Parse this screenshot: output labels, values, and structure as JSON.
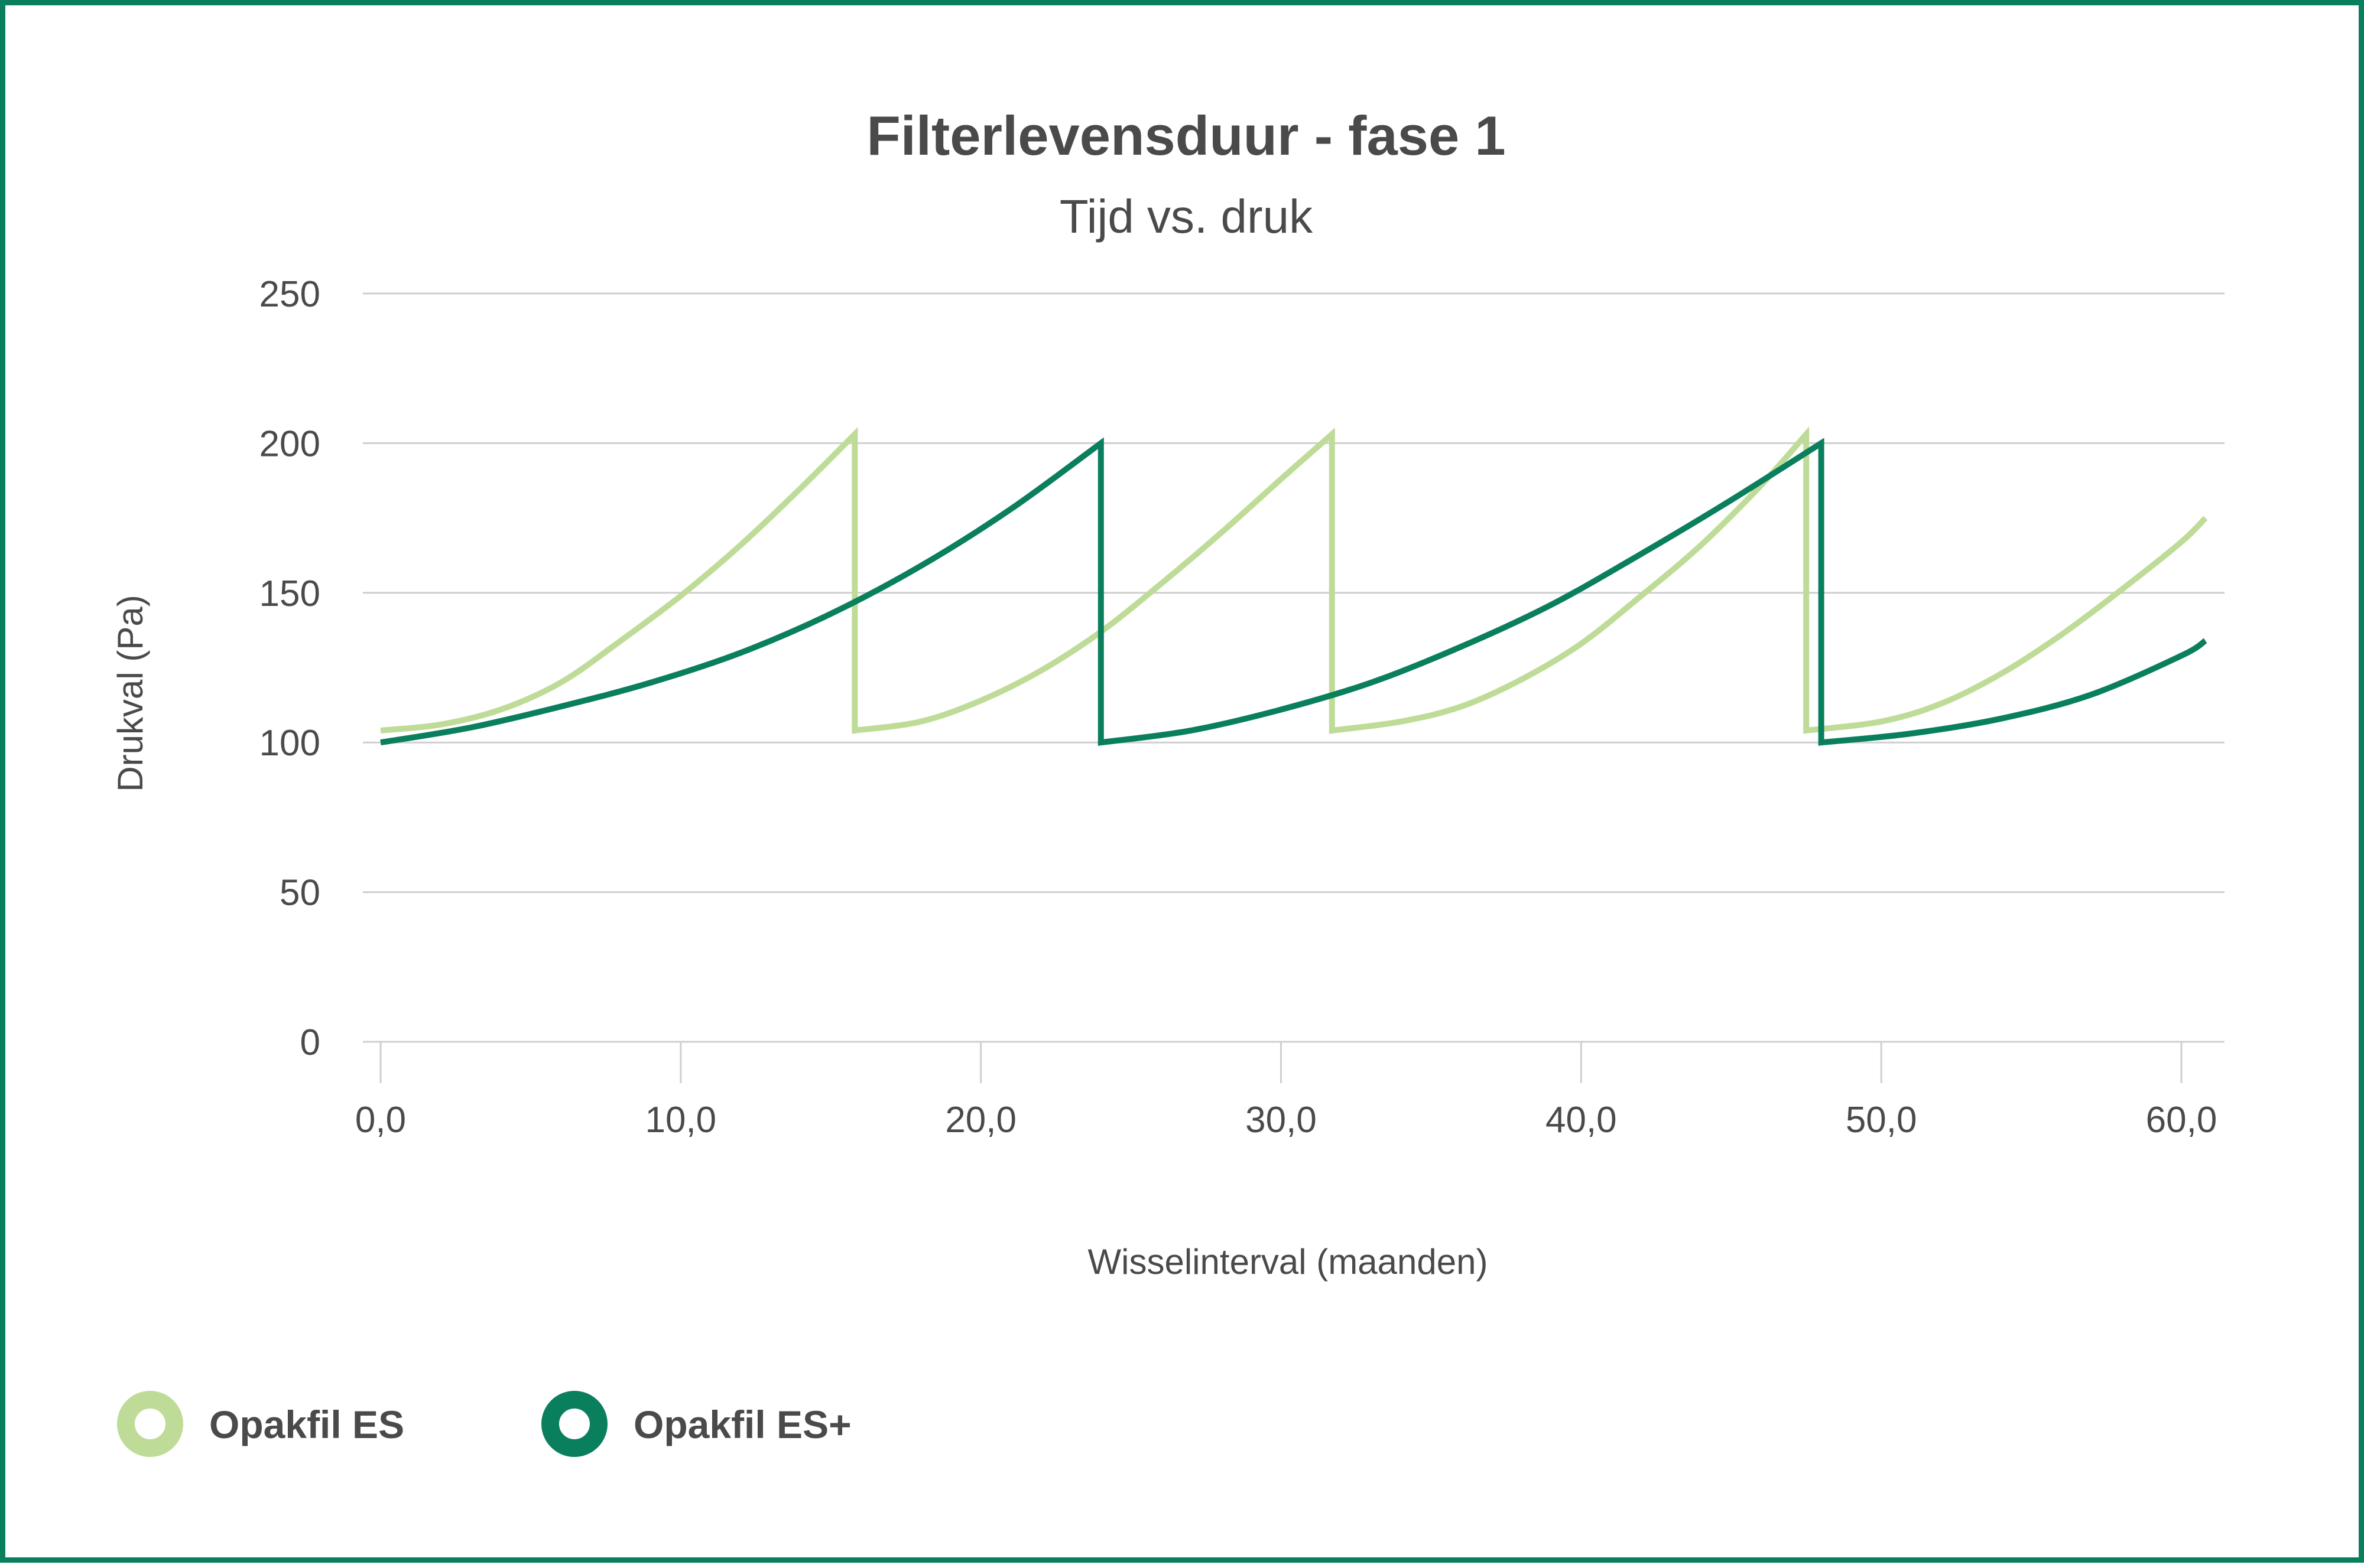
{
  "chart_data": {
    "type": "line",
    "title": "Filterlevensduur - fase 1",
    "subtitle": "Tijd vs. druk",
    "xlabel": "Wisselinterval (maanden)",
    "ylabel": "Drukval (Pa)",
    "xlim": [
      0,
      61
    ],
    "ylim": [
      0,
      250
    ],
    "x_ticks": [
      0,
      10,
      20,
      30,
      40,
      50,
      60
    ],
    "x_tick_labels": [
      "0,0",
      "10,0",
      "20,0",
      "30,0",
      "40,0",
      "50,0",
      "60,0"
    ],
    "y_ticks": [
      0,
      50,
      100,
      150,
      200,
      250
    ],
    "y_tick_labels": [
      "0",
      "50",
      "100",
      "150",
      "200",
      "250"
    ],
    "grid": "horizontal",
    "legend_position": "bottom-left",
    "series": [
      {
        "name": "Opakfil ES",
        "color": "#bedc98",
        "points": [
          [
            0,
            104
          ],
          [
            2,
            106
          ],
          [
            4,
            111
          ],
          [
            6,
            120
          ],
          [
            8,
            134
          ],
          [
            10,
            149
          ],
          [
            12,
            166
          ],
          [
            14,
            185
          ],
          [
            15.8,
            203
          ],
          [
            15.8,
            104
          ],
          [
            18,
            107
          ],
          [
            20,
            114
          ],
          [
            22,
            124
          ],
          [
            24,
            137
          ],
          [
            26,
            153
          ],
          [
            28,
            170
          ],
          [
            30,
            188
          ],
          [
            31.7,
            203
          ],
          [
            31.7,
            104
          ],
          [
            34,
            107
          ],
          [
            36,
            112
          ],
          [
            38,
            121
          ],
          [
            40,
            133
          ],
          [
            42,
            149
          ],
          [
            44,
            166
          ],
          [
            46,
            186
          ],
          [
            47.5,
            203
          ],
          [
            47.5,
            104
          ],
          [
            50,
            107
          ],
          [
            52,
            113
          ],
          [
            54,
            123
          ],
          [
            56,
            136
          ],
          [
            58,
            151
          ],
          [
            60,
            167
          ],
          [
            60.8,
            175
          ]
        ]
      },
      {
        "name": "Opakfil ES+",
        "color": "#0a7f5d",
        "points": [
          [
            0,
            100
          ],
          [
            3,
            105
          ],
          [
            6,
            112
          ],
          [
            9,
            120
          ],
          [
            12,
            130
          ],
          [
            15,
            143
          ],
          [
            18,
            159
          ],
          [
            21,
            178
          ],
          [
            24,
            200
          ],
          [
            24,
            100
          ],
          [
            27,
            104
          ],
          [
            30,
            111
          ],
          [
            33,
            120
          ],
          [
            36,
            132
          ],
          [
            39,
            146
          ],
          [
            42,
            163
          ],
          [
            45,
            181
          ],
          [
            48,
            200
          ],
          [
            48,
            100
          ],
          [
            51,
            103
          ],
          [
            54,
            108
          ],
          [
            57,
            116
          ],
          [
            60,
            129
          ],
          [
            60.8,
            134
          ]
        ]
      }
    ]
  },
  "colors": {
    "frame": "#0a7f5d",
    "text": "#4a4a4a",
    "grid": "#cfcfcf"
  }
}
